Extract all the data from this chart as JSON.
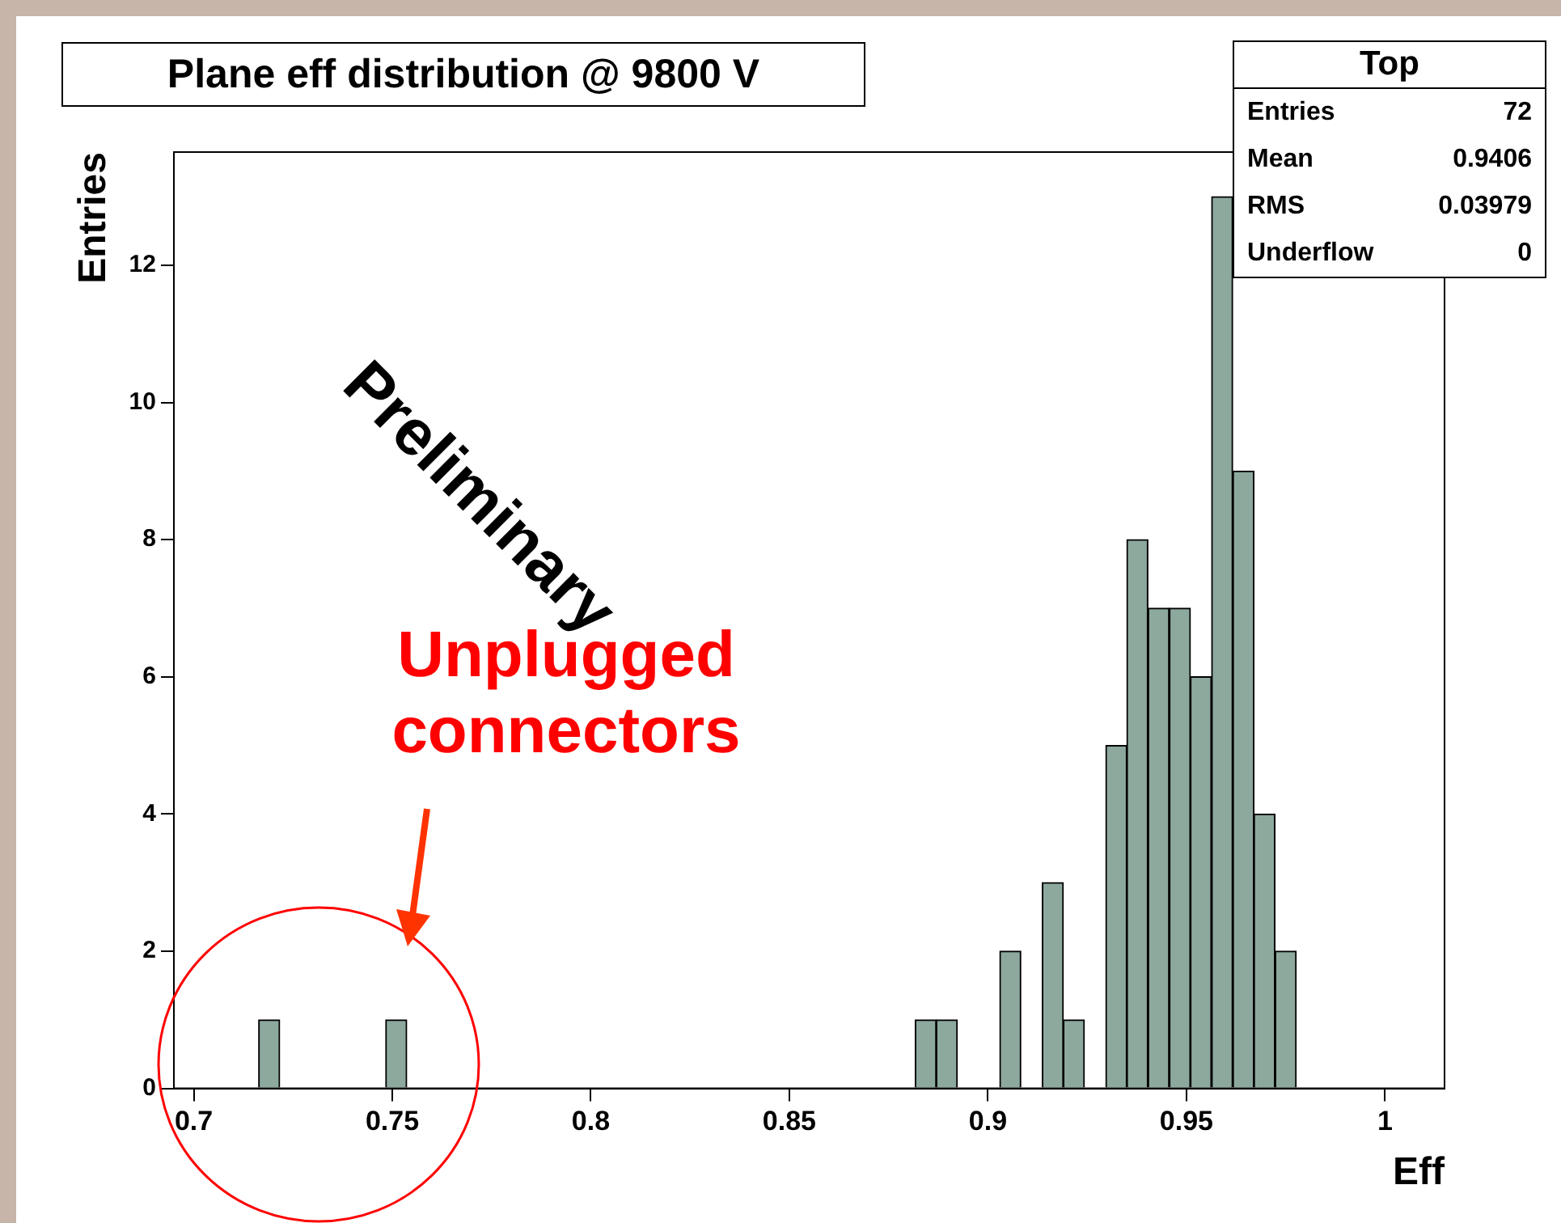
{
  "chart_data": {
    "type": "histogram",
    "title": "Plane eff distribution @ 9800 V",
    "xlabel": "Eff",
    "ylabel": "Entries",
    "bins": [
      0.695,
      0.7003,
      0.7057,
      0.711,
      0.7163,
      0.7217,
      0.727,
      0.7323,
      0.7377,
      0.743,
      0.7483,
      0.7537,
      0.759,
      0.7643,
      0.7697,
      0.775,
      0.7803,
      0.7857,
      0.791,
      0.7963,
      0.8017,
      0.807,
      0.8123,
      0.8177,
      0.823,
      0.8283,
      0.8337,
      0.839,
      0.8443,
      0.8497,
      0.855,
      0.8603,
      0.8657,
      0.871,
      0.8763,
      0.8817,
      0.887,
      0.8923,
      0.8977,
      0.903,
      0.9083,
      0.9137,
      0.919,
      0.9243,
      0.9297,
      0.935,
      0.9403,
      0.9457,
      0.951,
      0.9563,
      0.9617,
      0.967,
      0.9723,
      0.9777,
      0.983,
      0.9883,
      0.9937,
      0.999,
      1.0043,
      1.0097,
      1.015
    ],
    "values": [
      0,
      0,
      0,
      0,
      1,
      0,
      0,
      0,
      0,
      0,
      1,
      0,
      0,
      0,
      0,
      0,
      0,
      0,
      0,
      0,
      0,
      0,
      0,
      0,
      0,
      0,
      0,
      0,
      0,
      0,
      0,
      0,
      0,
      0,
      0,
      1,
      1,
      0,
      0,
      2,
      0,
      3,
      1,
      0,
      5,
      8,
      7,
      7,
      6,
      13,
      9,
      4,
      2,
      0,
      0,
      0,
      0,
      0,
      0,
      0
    ],
    "color": "#8da99e",
    "xlim": [
      0.695,
      1.015
    ],
    "xticks": [
      0.7,
      0.75,
      0.8,
      0.85,
      0.9,
      0.95,
      1
    ],
    "ylim": [
      0,
      13.65
    ],
    "yticks": [
      0,
      2,
      4,
      6,
      8,
      10,
      12
    ],
    "grid": false,
    "legend": false,
    "annotations": [
      "Preliminary",
      "Unplugged connectors",
      "Top",
      "Entries",
      "72",
      "Mean",
      "0.9406",
      "RMS",
      "0.03979",
      "Underflow",
      "0"
    ]
  }
}
